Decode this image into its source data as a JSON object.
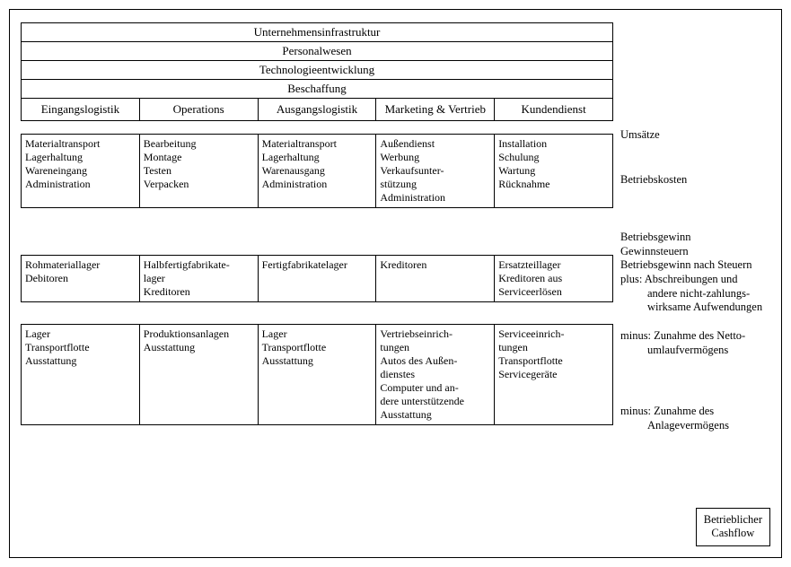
{
  "diagram": {
    "type": "infographic",
    "background_color": "#ffffff",
    "border_color": "#000000",
    "font_family": "Georgia, serif",
    "label_fontsize": 13,
    "detail_fontsize": 12,
    "support_activities": [
      "Unternehmensinfrastruktur",
      "Personalwesen",
      "Technologieentwicklung",
      "Beschaffung"
    ],
    "primary_activities": [
      "Eingangslogistik",
      "Operations",
      "Ausgangslogistik",
      "Marketing & Vertrieb",
      "Kundendienst"
    ],
    "betriebskosten_row": [
      "Materialtransport\nLagerhaltung\nWareneingang\nAdministration",
      "Bearbeitung\nMontage\nTesten\nVerpacken",
      "Materialtransport\nLagerhaltung\nWarenausgang\nAdministration",
      "Außendienst\nWerbung\nVerkaufsunter-\nstützung\nAdministration",
      "Installation\nSchulung\nWartung\nRücknahme"
    ],
    "umlaufvermoegen_row": [
      "Rohmateriallager\nDebitoren",
      "Halbfertigfabrikate-\nlager\nKreditoren",
      "Fertigfabrikatelager",
      "Kreditoren",
      "Ersatzteillager\nKreditoren aus\nServiceerlösen"
    ],
    "anlagevermoegen_row": [
      "Lager\nTransportflotte\nAusstattung",
      "Produktionsanlagen\nAusstattung",
      "Lager\nTransportflotte\nAusstattung",
      "Vertriebseinrich-\ntungen\nAutos des Außen-\ndienstes\nComputer und an-\ndere unterstützende\nAusstattung",
      "Serviceeinrich-\ntungen\nTransportflotte\nServicegeräte"
    ],
    "right_labels": {
      "umsaetze": "Umsätze",
      "betriebskosten": "Betriebskosten",
      "mid_block_l1": "Betriebsgewinn",
      "mid_block_l2": "Gewinnsteuern",
      "mid_block_l3": "Betriebsgewinn nach Steuern",
      "mid_block_l4a": "plus:",
      "mid_block_l4b": "Abschreibungen und",
      "mid_block_l5": "andere nicht-zahlungs-",
      "mid_block_l6": "wirksame Aufwendungen",
      "umlauf_a": "minus:",
      "umlauf_b": "Zunahme des Netto-",
      "umlauf_c": "umlaufvermögens",
      "anlage_a": "minus:",
      "anlage_b": "Zunahme des",
      "anlage_c": "Anlagevermögens"
    },
    "cashflow_box_l1": "Betrieblicher",
    "cashflow_box_l2": "Cashflow"
  }
}
